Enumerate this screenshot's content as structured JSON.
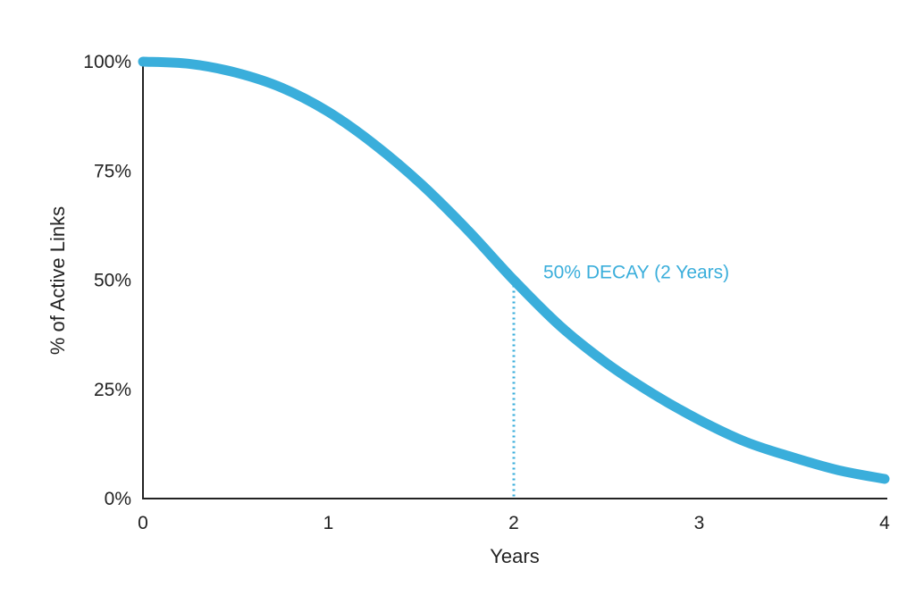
{
  "chart_data": {
    "type": "line",
    "title": "",
    "xlabel": "Years",
    "ylabel": "% of Active Links",
    "xlim": [
      0,
      4
    ],
    "ylim": [
      0,
      100
    ],
    "x_ticks": [
      0,
      1,
      2,
      3,
      4
    ],
    "x_tick_labels": [
      "0",
      "1",
      "2",
      "3",
      "4"
    ],
    "y_ticks": [
      0,
      25,
      50,
      75,
      100
    ],
    "y_tick_labels": [
      "0%",
      "25%",
      "50%",
      "75%",
      "100%"
    ],
    "grid": false,
    "series": [
      {
        "color": "#3aaedb",
        "x": [
          0,
          0.25,
          0.5,
          0.75,
          1.0,
          1.25,
          1.5,
          1.75,
          2.0,
          2.25,
          2.5,
          2.75,
          3.0,
          3.25,
          3.5,
          3.75,
          4.0
        ],
        "y": [
          100,
          99.5,
          97.5,
          94,
          88.5,
          81,
          72,
          61.5,
          50,
          39.5,
          31,
          24,
          18,
          13,
          9.5,
          6.5,
          4.5
        ]
      }
    ],
    "annotations": [
      {
        "text": "50% DECAY (2 Years)",
        "x": 2,
        "y": 50,
        "color": "#3aaedb",
        "style": "dotted-drop-line"
      }
    ]
  }
}
